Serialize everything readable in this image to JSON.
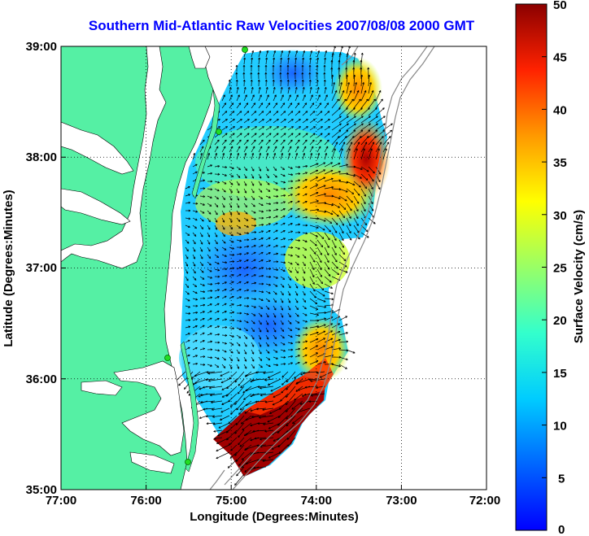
{
  "title": "Southern Mid-Atlantic Raw Velocities 2007/08/08 2000 GMT",
  "chart_data": {
    "type": "heatmap",
    "title": "Southern Mid-Atlantic Raw Velocities 2007/08/08 2000 GMT",
    "xlabel": "Longitude (Degrees:Minutes)",
    "ylabel": "Latitude (Degrees:Minutes)",
    "x_ticks": [
      "77:00",
      "76:00",
      "75:00",
      "74:00",
      "73:00",
      "72:00"
    ],
    "y_ticks": [
      "39:00",
      "38:00",
      "37:00",
      "36:00",
      "35:00"
    ],
    "xlim": [
      -77,
      -72
    ],
    "ylim": [
      35,
      39
    ],
    "grid": true,
    "colorbar": {
      "label": "Surface Velocity (cm/s)",
      "ticks": [
        "0",
        "5",
        "10",
        "15",
        "20",
        "25",
        "30",
        "35",
        "40",
        "45",
        "50"
      ],
      "range": [
        0,
        50
      ],
      "colormap": "jet"
    },
    "land_color": "#55f0a4",
    "station_color": "#22dd22"
  }
}
